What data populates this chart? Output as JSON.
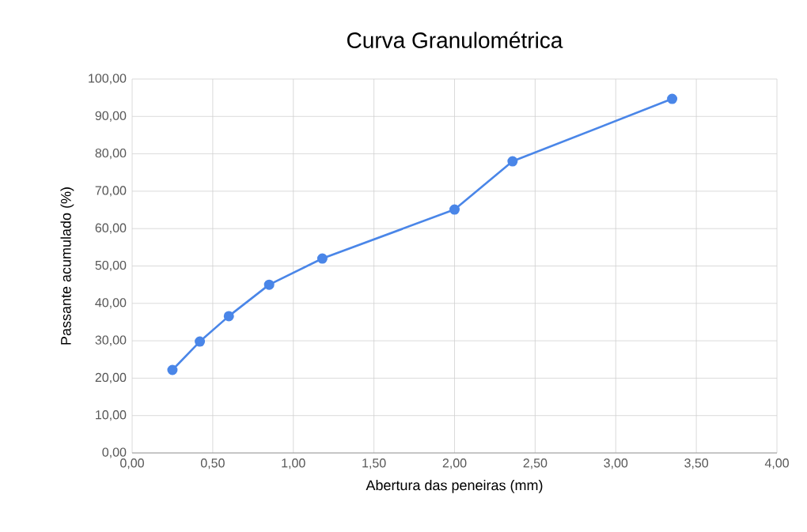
{
  "chart_data": {
    "type": "line",
    "title": "Curva Granulométrica",
    "xlabel": "Abertura das peneiras (mm)",
    "ylabel": "Passante acumulado (%)",
    "x": [
      0.25,
      0.42,
      0.6,
      0.85,
      1.18,
      2.0,
      2.36,
      3.35
    ],
    "values": [
      22.2,
      29.8,
      36.6,
      45.0,
      52.0,
      65.1,
      78.0,
      94.7
    ],
    "color": "#4a86e8",
    "marker": "circle",
    "line_style": "solid",
    "grid": true,
    "xlim": [
      0,
      4
    ],
    "ylim": [
      0,
      100
    ],
    "xticks": [
      {
        "value": 0,
        "label": "0,00"
      },
      {
        "value": 0.5,
        "label": "0,50"
      },
      {
        "value": 1,
        "label": "1,00"
      },
      {
        "value": 1.5,
        "label": "1,50"
      },
      {
        "value": 2,
        "label": "2,00"
      },
      {
        "value": 2.5,
        "label": "2,50"
      },
      {
        "value": 3,
        "label": "3,00"
      },
      {
        "value": 3.5,
        "label": "3,50"
      },
      {
        "value": 4,
        "label": "4,00"
      }
    ],
    "yticks": [
      {
        "value": 0,
        "label": "0,00"
      },
      {
        "value": 10,
        "label": "10,00"
      },
      {
        "value": 20,
        "label": "20,00"
      },
      {
        "value": 30,
        "label": "30,00"
      },
      {
        "value": 40,
        "label": "40,00"
      },
      {
        "value": 50,
        "label": "50,00"
      },
      {
        "value": 60,
        "label": "60,00"
      },
      {
        "value": 70,
        "label": "70,00"
      },
      {
        "value": 80,
        "label": "80,00"
      },
      {
        "value": 90,
        "label": "90,00"
      },
      {
        "value": 100,
        "label": "100,00"
      }
    ]
  }
}
